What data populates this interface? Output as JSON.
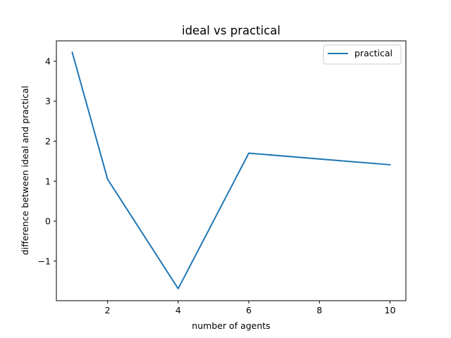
{
  "chart_data": {
    "type": "line",
    "title": "ideal vs practical",
    "xlabel": "number of agents",
    "ylabel": "difference between ideal and practical",
    "xlim": [
      0.55,
      10.45
    ],
    "ylim": [
      -1.99,
      4.51
    ],
    "xticks": [
      2,
      4,
      6,
      8,
      10
    ],
    "yticks": [
      -1,
      0,
      1,
      2,
      3,
      4
    ],
    "ytick_labels": [
      "−1",
      "0",
      "1",
      "2",
      "3",
      "4"
    ],
    "grid": false,
    "legend_position": "top-right",
    "series": [
      {
        "name": "practical",
        "color": "#1f77b4",
        "x": [
          1,
          2,
          4,
          6,
          10
        ],
        "y": [
          4.22,
          1.05,
          -1.69,
          1.7,
          1.41
        ]
      }
    ]
  }
}
